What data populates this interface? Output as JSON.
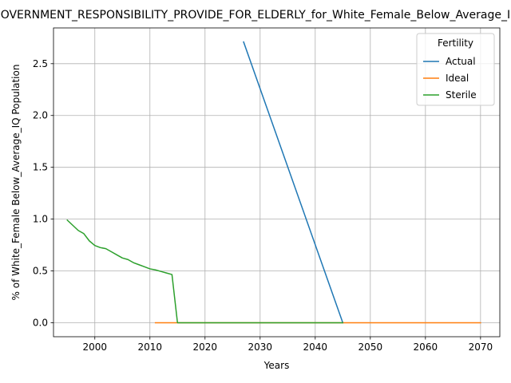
{
  "chart_data": {
    "type": "line",
    "title": "GOVERNMENT_RESPONSIBILITY_PROVIDE_FOR_ELDERLY_for_White_Female_Below_Average_IQ",
    "xlabel": "Years",
    "ylabel": "% of White_Female Below_Average_IQ Population",
    "xlim": [
      1992.5,
      2073.5
    ],
    "ylim": [
      -0.135,
      2.845
    ],
    "xticks": [
      2000,
      2010,
      2020,
      2030,
      2040,
      2050,
      2060,
      2070
    ],
    "yticks": [
      0.0,
      0.5,
      1.0,
      1.5,
      2.0,
      2.5
    ],
    "ytick_labels": [
      "0.0",
      "0.5",
      "1.0",
      "1.5",
      "2.0",
      "2.5"
    ],
    "grid": true,
    "legend": {
      "title": "Fertility",
      "placement": "upper-right"
    },
    "series": [
      {
        "name": "Actual",
        "color": "#1f77b4",
        "x": [
          2027,
          2045
        ],
        "y": [
          2.71,
          0.0
        ]
      },
      {
        "name": "Ideal",
        "color": "#ff7f0e",
        "x": [
          2011,
          2070
        ],
        "y": [
          0.0,
          0.0
        ]
      },
      {
        "name": "Sterile",
        "color": "#2ca02c",
        "x": [
          1995,
          1996,
          1997,
          1998,
          1999,
          2000,
          2001,
          2002,
          2003,
          2004,
          2005,
          2006,
          2007,
          2008,
          2009,
          2010,
          2011,
          2012,
          2013,
          2014,
          2015,
          2016,
          2020,
          2030,
          2040,
          2045
        ],
        "y": [
          0.99,
          0.94,
          0.89,
          0.86,
          0.79,
          0.745,
          0.725,
          0.715,
          0.685,
          0.655,
          0.625,
          0.61,
          0.58,
          0.56,
          0.54,
          0.52,
          0.51,
          0.495,
          0.48,
          0.465,
          0.0,
          0.0,
          0.0,
          0.0,
          0.0,
          0.0
        ]
      }
    ]
  }
}
